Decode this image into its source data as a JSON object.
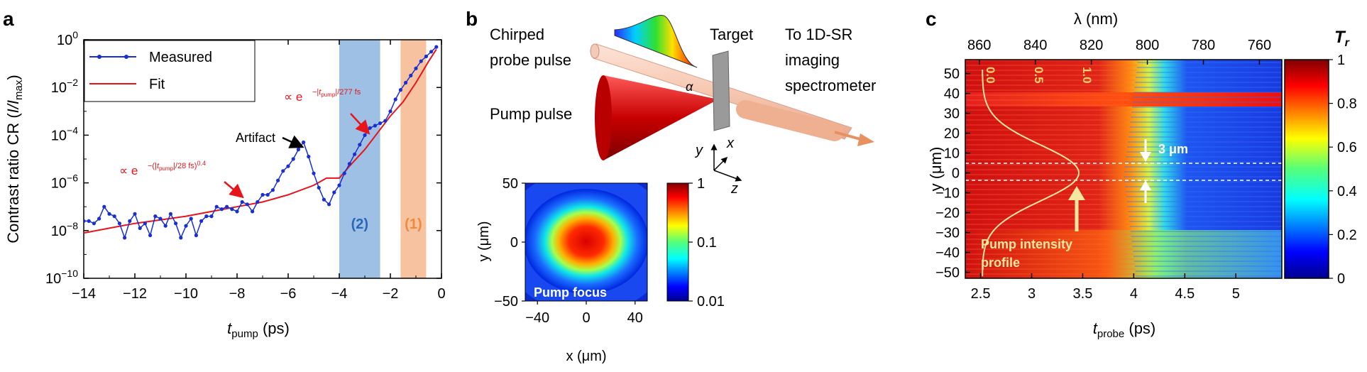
{
  "panel_a": {
    "letter": "a",
    "ylabel_main": "Contrast ratio CR (",
    "ylabel_frac": "I/I",
    "ylabel_sub": "max",
    "ylabel_end": ")",
    "xlabel_main": "t",
    "xlabel_sub": "pump",
    "xlabel_unit": " (ps)",
    "x_ticks": [
      "−14",
      "−12",
      "−10",
      "−8",
      "−6",
      "−4",
      "−2",
      "0"
    ],
    "y_tick_base": "10",
    "y_tick_exps": [
      "0",
      "−2",
      "−4",
      "−6",
      "−8",
      "−10"
    ],
    "legend": {
      "measured": "Measured",
      "fit": "Fit"
    },
    "ann_artifact": "Artifact",
    "ann_fit1_pre": "∝ e",
    "ann_fit1_exp_a": "−|",
    "ann_fit1_exp_t": "t",
    "ann_fit1_exp_sub": "pump",
    "ann_fit1_exp_b": "|/277 fs",
    "ann_fit2_pre": "∝ e",
    "ann_fit2_exp_a": "−(|",
    "ann_fit2_exp_t": "t",
    "ann_fit2_exp_sub": "pump",
    "ann_fit2_exp_b": "|/28 fs)",
    "ann_fit2_exp_pow": "0.4",
    "region2": "(2)",
    "region1": "(1)",
    "colors": {
      "measured": "#1a2fd0",
      "fit": "#e8141b",
      "region2": "#9ec0e4",
      "region1": "#f7c2a0",
      "label2": "#2a66b8",
      "label1": "#f08a3a"
    }
  },
  "panel_b": {
    "letter": "b",
    "chirped": "Chirped",
    "probe_pulse": "probe pulse",
    "pump_pulse": "Pump pulse",
    "target": "Target",
    "to_line1": "To 1D-SR",
    "to_line2": "imaging",
    "to_line3": "spectrometer",
    "alpha": "α",
    "axis_y": "y",
    "axis_x": "x",
    "axis_z": "z",
    "focus_label": "Pump focus",
    "focus_x_ticks": [
      "−40",
      "0",
      "40"
    ],
    "focus_y_ticks": [
      "50",
      "0",
      "−50"
    ],
    "focus_xlabel": "x (μm)",
    "focus_ylabel": "y (μm)",
    "cbar_ticks": [
      "1",
      "0.1",
      "0.01"
    ]
  },
  "panel_c": {
    "letter": "c",
    "top_label": "λ (nm)",
    "top_ticks": [
      "860",
      "840",
      "820",
      "800",
      "780",
      "760"
    ],
    "x_ticks": [
      "2.5",
      "3",
      "3.5",
      "4",
      "4.5",
      "5"
    ],
    "xlabel_main": "t",
    "xlabel_sub": "probe",
    "xlabel_unit": " (ps)",
    "y_ticks": [
      "50",
      "40",
      "30",
      "20",
      "10",
      "0",
      "−10",
      "−20",
      "−30",
      "−40",
      "−50"
    ],
    "ylabel": "y (μm)",
    "profile_ticks": [
      "0.0",
      "0.5",
      "1.0"
    ],
    "three_um": "3 μm",
    "pump_line1": "Pump intensity",
    "pump_line2": "profile",
    "cbar_title_main": "T",
    "cbar_title_sub": "r",
    "cbar_ticks": [
      "1",
      "0.8",
      "0.6",
      "0.4",
      "0.2",
      "0"
    ]
  },
  "chart_data": [
    {
      "type": "line",
      "title": "",
      "xlabel": "t_pump (ps)",
      "ylabel": "Contrast ratio CR (I/I_max)",
      "xlim": [
        -14,
        0
      ],
      "ylim_log10": [
        -10,
        0
      ],
      "yscale": "log",
      "legend_position": "top-left",
      "series": [
        {
          "name": "Measured",
          "x": [
            -14.0,
            -13.8,
            -13.6,
            -13.4,
            -13.2,
            -13.0,
            -12.8,
            -12.6,
            -12.4,
            -12.2,
            -12.0,
            -11.8,
            -11.6,
            -11.4,
            -11.2,
            -11.0,
            -10.8,
            -10.6,
            -10.4,
            -10.2,
            -10.0,
            -9.8,
            -9.6,
            -9.4,
            -9.2,
            -9.0,
            -8.8,
            -8.6,
            -8.4,
            -8.2,
            -8.0,
            -7.8,
            -7.6,
            -7.4,
            -7.2,
            -7.0,
            -6.8,
            -6.6,
            -6.4,
            -6.2,
            -6.0,
            -5.8,
            -5.6,
            -5.4,
            -5.2,
            -5.0,
            -4.8,
            -4.6,
            -4.4,
            -4.2,
            -4.0,
            -3.8,
            -3.6,
            -3.4,
            -3.2,
            -3.0,
            -2.8,
            -2.6,
            -2.4,
            -2.2,
            -2.0,
            -1.8,
            -1.6,
            -1.4,
            -1.2,
            -1.0,
            -0.8,
            -0.6,
            -0.4,
            -0.2
          ],
          "log10_y": [
            -7.6,
            -7.6,
            -7.7,
            -7.5,
            -7.0,
            -7.3,
            -7.4,
            -7.7,
            -8.3,
            -7.6,
            -7.3,
            -7.9,
            -7.7,
            -8.2,
            -7.4,
            -7.5,
            -7.8,
            -7.3,
            -7.7,
            -8.3,
            -7.8,
            -7.5,
            -8.2,
            -7.6,
            -7.4,
            -7.4,
            -7.0,
            -7.1,
            -7.0,
            -7.1,
            -7.2,
            -6.8,
            -6.9,
            -7.2,
            -6.8,
            -6.5,
            -6.5,
            -6.3,
            -5.9,
            -5.5,
            -5.3,
            -5.0,
            -4.6,
            -4.3,
            -4.9,
            -5.6,
            -6.2,
            -6.7,
            -6.9,
            -6.4,
            -6.1,
            -5.6,
            -5.2,
            -4.8,
            -4.4,
            -4.0,
            -3.7,
            -3.6,
            -3.5,
            -3.4,
            -3.0,
            -2.5,
            -2.1,
            -1.8,
            -1.5,
            -1.2,
            -0.9,
            -0.7,
            -0.5,
            -0.3
          ]
        },
        {
          "name": "Fit",
          "x": [
            -14.0,
            -13.0,
            -12.0,
            -11.0,
            -10.0,
            -9.0,
            -8.0,
            -7.0,
            -6.0,
            -5.0,
            -4.5,
            -4.0,
            -3.6,
            -3.0,
            -2.0,
            -1.5,
            -1.0,
            -0.5,
            -0.2
          ],
          "log10_y": [
            -8.1,
            -7.9,
            -7.7,
            -7.55,
            -7.4,
            -7.2,
            -7.0,
            -6.8,
            -6.5,
            -6.1,
            -5.8,
            -5.8,
            -5.3,
            -4.6,
            -3.2,
            -2.6,
            -1.8,
            -0.9,
            -0.4
          ]
        }
      ],
      "shaded_regions": [
        {
          "label": "(2)",
          "x_range": [
            -4.0,
            -2.4
          ]
        },
        {
          "label": "(1)",
          "x_range": [
            -1.6,
            -0.6
          ]
        }
      ]
    },
    {
      "type": "heatmap",
      "title": "Pump focus",
      "xlabel": "x (μm)",
      "ylabel": "y (μm)",
      "xlim": [
        -50,
        50
      ],
      "ylim": [
        -50,
        50
      ],
      "colorbar": {
        "scale": "log",
        "range": [
          0.01,
          1
        ]
      }
    },
    {
      "type": "heatmap",
      "xlabel": "t_probe (ps)",
      "ylabel": "y (μm)",
      "top_xlabel": "λ (nm)",
      "xlim": [
        2.35,
        5.45
      ],
      "top_xlim_nm": [
        865,
        752
      ],
      "ylim": [
        -53,
        57
      ],
      "colorbar": {
        "title": "T_r",
        "range": [
          0,
          1
        ]
      }
    }
  ]
}
